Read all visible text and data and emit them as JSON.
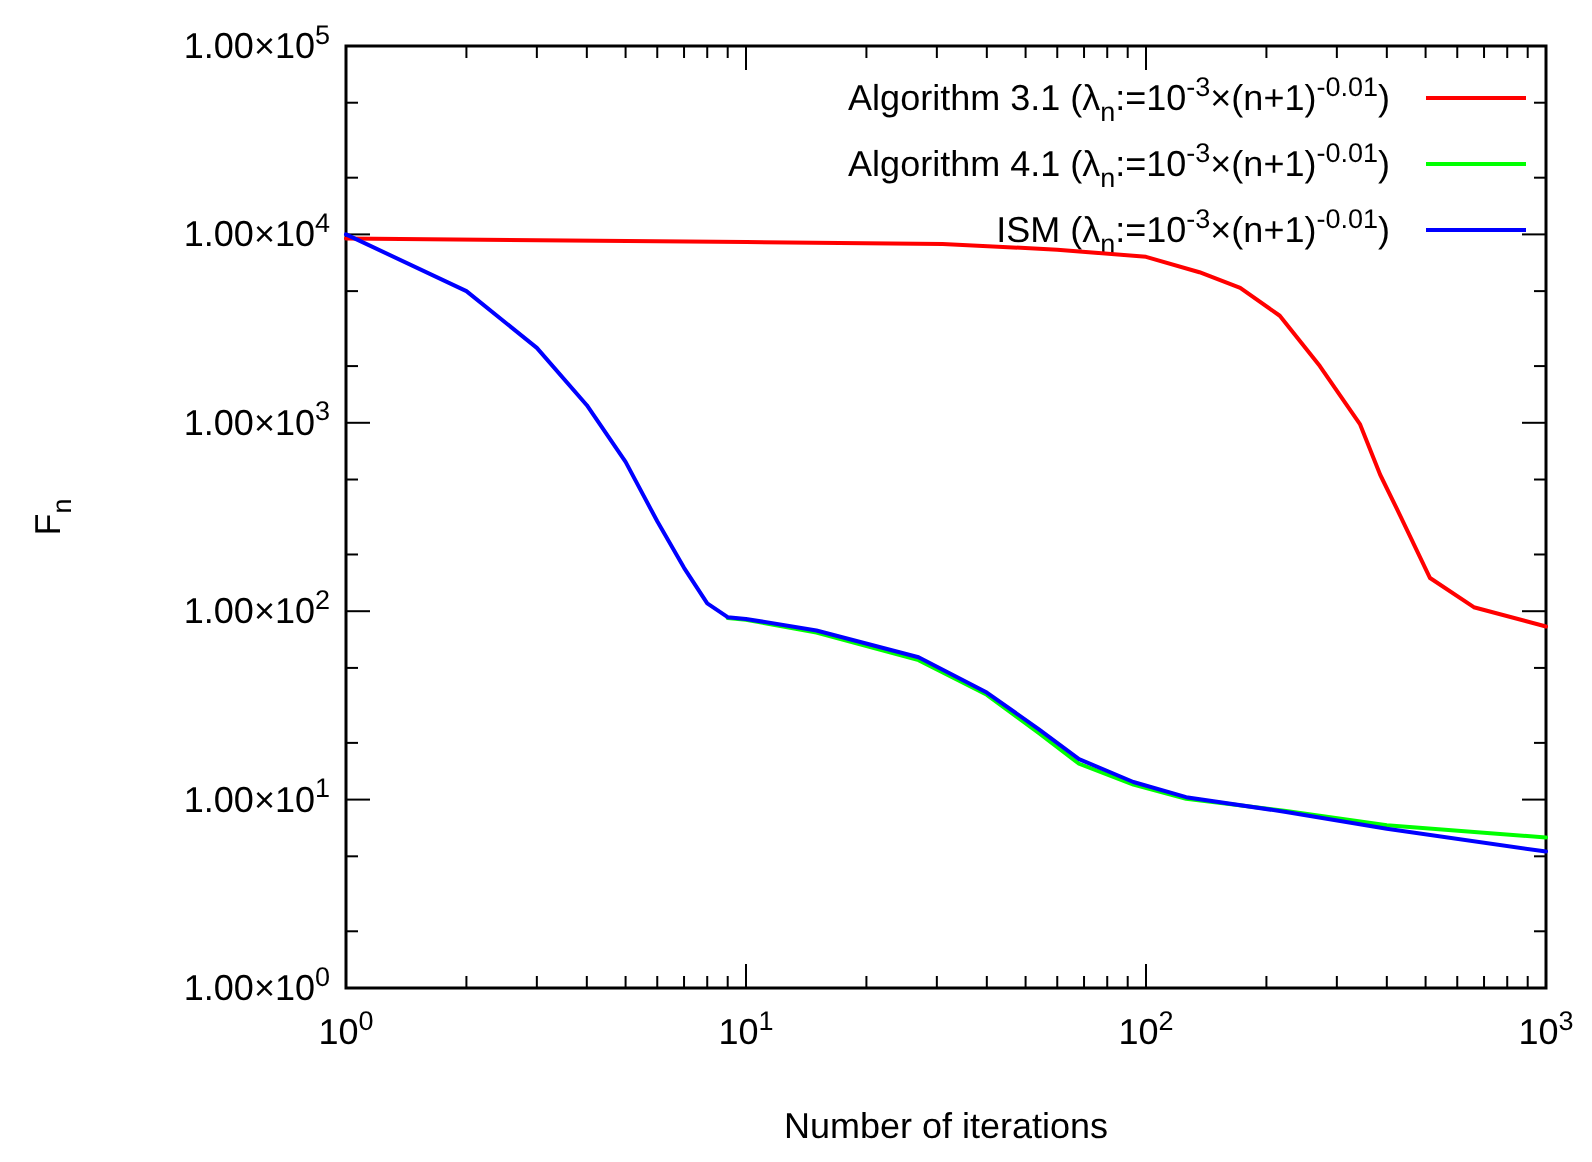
{
  "chart_data": {
    "type": "line",
    "xlabel": "Number of iterations",
    "ylabel": "F$_{n}$",
    "log": "xy",
    "grid": false,
    "legend": "top right",
    "marker": "none",
    "line_style": "solid",
    "xlim": [
      1,
      1000
    ],
    "ylim": [
      1,
      100000
    ],
    "xticks": [
      {
        "value": 1,
        "label": "10$^{0}$"
      },
      {
        "value": 2,
        "label": null
      },
      {
        "value": 3,
        "label": null
      },
      {
        "value": 4,
        "label": null
      },
      {
        "value": 5,
        "label": null
      },
      {
        "value": 6,
        "label": null
      },
      {
        "value": 7,
        "label": null
      },
      {
        "value": 8,
        "label": null
      },
      {
        "value": 9,
        "label": null
      },
      {
        "value": 10,
        "label": "10$^{1}$"
      },
      {
        "value": 20,
        "label": null
      },
      {
        "value": 30,
        "label": null
      },
      {
        "value": 40,
        "label": null
      },
      {
        "value": 50,
        "label": null
      },
      {
        "value": 60,
        "label": null
      },
      {
        "value": 70,
        "label": null
      },
      {
        "value": 80,
        "label": null
      },
      {
        "value": 90,
        "label": null
      },
      {
        "value": 100,
        "label": "10$^{2}$"
      },
      {
        "value": 200,
        "label": null
      },
      {
        "value": 300,
        "label": null
      },
      {
        "value": 400,
        "label": null
      },
      {
        "value": 500,
        "label": null
      },
      {
        "value": 600,
        "label": null
      },
      {
        "value": 700,
        "label": null
      },
      {
        "value": 800,
        "label": null
      },
      {
        "value": 900,
        "label": null
      },
      {
        "value": 1000,
        "label": "10$^{3}$"
      }
    ],
    "yticks": [
      {
        "value": 1,
        "label": "1.00×10$^{0}$"
      },
      {
        "value": 2,
        "label": null
      },
      {
        "value": 5,
        "label": null
      },
      {
        "value": 10,
        "label": "1.00×10$^{1}$"
      },
      {
        "value": 20,
        "label": null
      },
      {
        "value": 50,
        "label": null
      },
      {
        "value": 100,
        "label": "1.00×10$^{2}$"
      },
      {
        "value": 200,
        "label": null
      },
      {
        "value": 500,
        "label": null
      },
      {
        "value": 1000,
        "label": "1.00×10$^{3}$"
      },
      {
        "value": 2000,
        "label": null
      },
      {
        "value": 5000,
        "label": null
      },
      {
        "value": 10000,
        "label": "1.00×10$^{4}$"
      },
      {
        "value": 20000,
        "label": null
      },
      {
        "value": 50000,
        "label": null
      },
      {
        "value": 100000,
        "label": "1.00×10$^{5}$"
      }
    ],
    "series": [
      {
        "name": "Algorithm 3.1 (λ$_{n}$:=10$^{-3}$×(n+1)$^{-0.01}$)",
        "color": "#ff0000",
        "x": [
          1,
          10,
          31,
          60,
          100,
          136,
          172,
          216,
          272,
          343,
          385,
          431,
          513,
          660,
          1000
        ],
        "values": [
          9500,
          9100,
          8900,
          8300,
          7600,
          6300,
          5200,
          3700,
          2000,
          980,
          530,
          325,
          150,
          105,
          83
        ]
      },
      {
        "name": "Algorithm 4.1 (λ$_{n}$:=10$^{-3}$×(n+1)$^{-0.01}$)",
        "color": "#00ff00",
        "x": [
          9,
          10,
          15,
          27,
          40,
          54,
          68,
          93,
          126,
          224,
          400,
          1000
        ],
        "values": [
          92,
          90,
          77,
          55,
          36,
          22.5,
          15.5,
          12,
          10.1,
          8.7,
          7.3,
          6.3
        ]
      },
      {
        "name": "ISM (λ$_{n}$:=10$^{-3}$×(n+1)$^{-0.01}$)",
        "color": "#0000ff",
        "x": [
          1,
          2,
          3,
          4,
          5,
          6,
          7,
          8,
          9,
          10,
          15,
          27,
          40,
          54,
          68,
          93,
          126,
          224,
          400,
          1000
        ],
        "values": [
          10000,
          5000,
          2500,
          1240,
          620,
          300,
          170,
          110,
          93,
          91,
          79,
          57,
          37,
          23.6,
          16.4,
          12.4,
          10.3,
          8.6,
          7.0,
          5.3
        ]
      }
    ]
  }
}
